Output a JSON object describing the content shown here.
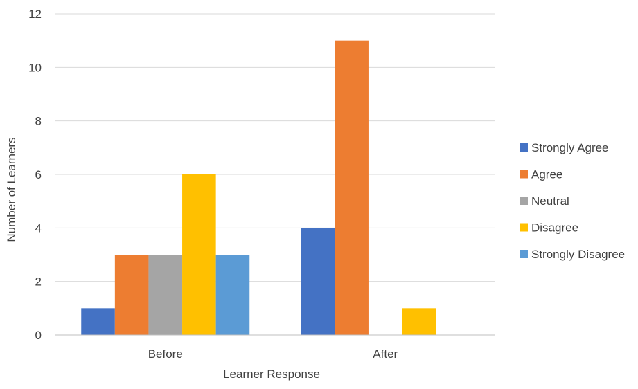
{
  "chart_data": {
    "type": "bar",
    "title": "",
    "xlabel": "Learner Response",
    "ylabel": "Number of Learners",
    "categories": [
      "Before",
      "After"
    ],
    "series": [
      {
        "name": "Strongly Agree",
        "color": "#4472c4",
        "values": [
          1,
          4
        ]
      },
      {
        "name": "Agree",
        "color": "#ed7d31",
        "values": [
          3,
          11
        ]
      },
      {
        "name": "Neutral",
        "color": "#a5a5a5",
        "values": [
          3,
          0
        ]
      },
      {
        "name": "Disagree",
        "color": "#ffc000",
        "values": [
          6,
          1
        ]
      },
      {
        "name": "Strongly Disagree",
        "color": "#5b9bd5",
        "values": [
          3,
          0
        ]
      }
    ],
    "ylim": [
      0,
      12
    ],
    "yticks": [
      "0",
      "2",
      "4",
      "6",
      "8",
      "10",
      "12"
    ],
    "grid": true,
    "legend_position": "right"
  }
}
